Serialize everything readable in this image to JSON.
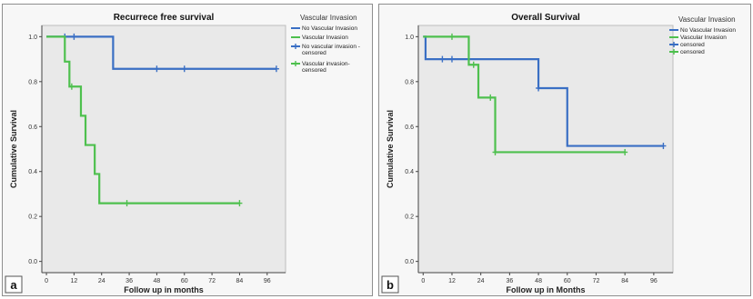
{
  "chart_data": [
    {
      "id": "a",
      "type": "line",
      "panel_label": "a",
      "title": "Recurrece free survival",
      "xlabel": "Follow up in months",
      "ylabel": "Cumulative Survival",
      "xlim": [
        -2,
        104
      ],
      "ylim": [
        -0.05,
        1.05
      ],
      "xticks": [
        "0",
        "12",
        "24",
        "36",
        "48",
        "60",
        "72",
        "84",
        "96"
      ],
      "xtick_values": [
        0,
        12,
        24,
        36,
        48,
        60,
        72,
        84,
        96
      ],
      "yticks": [
        "0.0",
        "0.2",
        "0.4",
        "0.6",
        "0.8",
        "1.0"
      ],
      "ytick_values": [
        0,
        0.2,
        0.4,
        0.6,
        0.8,
        1.0
      ],
      "legend_title": "Vascular Invasion",
      "legend_placement": "right",
      "legend_entries": [
        {
          "label": "No Vascular Invasion",
          "color": "#3a6fc4",
          "marker": "line"
        },
        {
          "label": "Vascular Invasion",
          "color": "#4ec04e",
          "marker": "line"
        },
        {
          "label": "No vascular invasion - censored",
          "color": "#3a6fc4",
          "marker": "plus",
          "lines": [
            "No vascular invasion -",
            "censored"
          ]
        },
        {
          "label": "Vascular invasion-censored",
          "color": "#4ec04e",
          "marker": "plus",
          "lines": [
            "Vascular invasion-",
            "censored"
          ]
        }
      ],
      "series": [
        {
          "name": "No Vascular Invasion",
          "color": "#3a6fc4",
          "x": [
            0,
            29,
            100
          ],
          "y": [
            1.0,
            0.857,
            0.857
          ],
          "censored": [
            [
              8,
              1.0
            ],
            [
              12,
              1.0
            ],
            [
              48,
              0.857
            ],
            [
              60,
              0.857
            ],
            [
              100,
              0.857
            ]
          ]
        },
        {
          "name": "Vascular Invasion",
          "color": "#4ec04e",
          "x": [
            0,
            8,
            10,
            15,
            17,
            21,
            23,
            84
          ],
          "y": [
            1.0,
            0.889,
            0.778,
            0.648,
            0.518,
            0.389,
            0.259,
            0.259
          ],
          "censored": [
            [
              11,
              0.778
            ],
            [
              35,
              0.259
            ],
            [
              84,
              0.259
            ]
          ]
        }
      ]
    },
    {
      "id": "b",
      "type": "line",
      "panel_label": "b",
      "title": "Overall Survival",
      "xlabel": "Follow up in Months",
      "ylabel": "Cumulative Survival",
      "xlim": [
        -2,
        104
      ],
      "ylim": [
        -0.05,
        1.05
      ],
      "xticks": [
        "0",
        "12",
        "24",
        "36",
        "48",
        "60",
        "72",
        "84",
        "96"
      ],
      "xtick_values": [
        0,
        12,
        24,
        36,
        48,
        60,
        72,
        84,
        96
      ],
      "yticks": [
        "0.0",
        "0.2",
        "0.4",
        "0.6",
        "0.8",
        "1.0"
      ],
      "ytick_values": [
        0,
        0.2,
        0.4,
        0.6,
        0.8,
        1.0
      ],
      "legend_title": "Vascular Invasion",
      "legend_placement": "top-right",
      "legend_entries": [
        {
          "label": "No Vascular Invasion",
          "color": "#3a6fc4",
          "marker": "line"
        },
        {
          "label": "Vascular Invasion",
          "color": "#4ec04e",
          "marker": "line"
        },
        {
          "label": "censored",
          "color": "#3a6fc4",
          "marker": "plus"
        },
        {
          "label": "censored",
          "color": "#4ec04e",
          "marker": "plus"
        }
      ],
      "series": [
        {
          "name": "No Vascular Invasion",
          "color": "#3a6fc4",
          "x": [
            0,
            1,
            48,
            60,
            100
          ],
          "y": [
            1.0,
            0.9,
            0.771,
            0.514,
            0.514
          ],
          "censored": [
            [
              8,
              0.9
            ],
            [
              12,
              0.9
            ],
            [
              48,
              0.771
            ],
            [
              100,
              0.514
            ]
          ]
        },
        {
          "name": "Vascular Invasion",
          "color": "#4ec04e",
          "x": [
            0,
            19,
            23,
            30,
            84
          ],
          "y": [
            1.0,
            0.875,
            0.729,
            0.486,
            0.486
          ],
          "censored": [
            [
              12,
              1.0
            ],
            [
              21,
              0.875
            ],
            [
              28,
              0.729
            ],
            [
              30,
              0.486
            ],
            [
              84,
              0.486
            ]
          ]
        }
      ]
    }
  ]
}
